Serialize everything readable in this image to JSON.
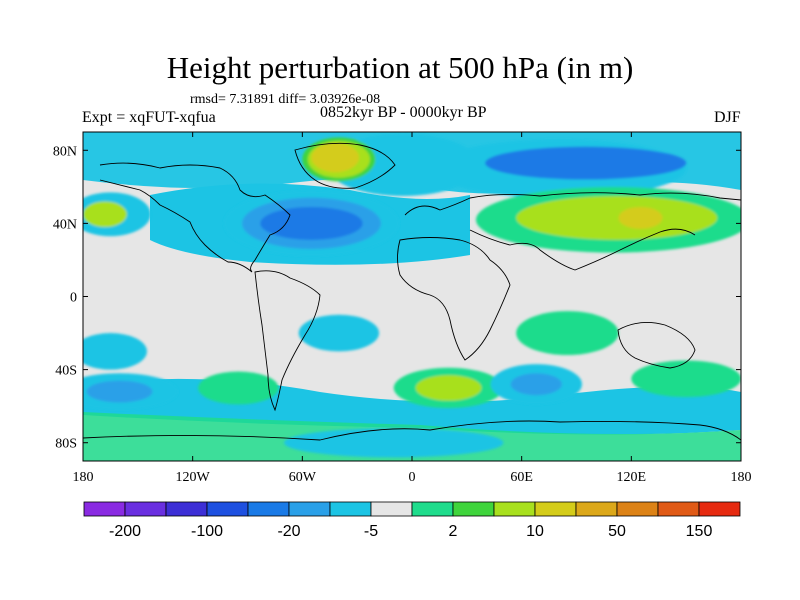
{
  "title": "Height perturbation at 500 hPa (in m)",
  "stats": "rmsd= 7.31891 diff= 3.03926e-08",
  "experiment": "Expt = xqFUT-xqfua",
  "period": "0852kyr BP - 0000kyr BP",
  "season": "DJF",
  "lat_labels": [
    "80N",
    "40N",
    "0",
    "40S",
    "80S"
  ],
  "lat_values": [
    80,
    40,
    0,
    -40,
    -80
  ],
  "lon_labels": [
    "180",
    "120W",
    "60W",
    "0",
    "60E",
    "120E",
    "180"
  ],
  "lon_values": [
    -180,
    -120,
    -60,
    0,
    60,
    120,
    180
  ],
  "colorbar": {
    "colors": [
      "#8a2be2",
      "#6a2fe0",
      "#3d2fd6",
      "#1e50e0",
      "#1a7ae6",
      "#2aa0e8",
      "#1cc4e4",
      "#e6e6e6",
      "#1fdc8c",
      "#3fd43c",
      "#a8e01e",
      "#d4cc1a",
      "#dca81a",
      "#dc8216",
      "#e05a16",
      "#e62a10"
    ],
    "labels": [
      "-200",
      "-100",
      "-20",
      "-5",
      "2",
      "10",
      "50",
      "150"
    ]
  },
  "fields": [
    {
      "lon": -5,
      "lat": 72,
      "rx": 42,
      "ry": 17,
      "color": "#1cc4e4"
    },
    {
      "lon": 80,
      "lat": 70,
      "rx": 70,
      "ry": 16,
      "color": "#1cc4e4"
    },
    {
      "lon": 95,
      "lat": 73,
      "rx": 55,
      "ry": 9,
      "color": "#1a7ae6"
    },
    {
      "lon": -40,
      "lat": 75,
      "rx": 20,
      "ry": 12,
      "color": "#3fd43c"
    },
    {
      "lon": -40,
      "lat": 75,
      "rx": 17,
      "ry": 10,
      "color": "#a8e01e"
    },
    {
      "lon": -42,
      "lat": 76,
      "rx": 13,
      "ry": 8,
      "color": "#d4cc1a"
    },
    {
      "lon": -165,
      "lat": 45,
      "rx": 22,
      "ry": 12,
      "color": "#1cc4e4"
    },
    {
      "lon": -168,
      "lat": 45,
      "rx": 12,
      "ry": 7,
      "color": "#a8e01e"
    },
    {
      "lon": -55,
      "lat": 40,
      "rx": 48,
      "ry": 18,
      "color": "#1cc4e4"
    },
    {
      "lon": -55,
      "lat": 40,
      "rx": 38,
      "ry": 14,
      "color": "#2aa0e8"
    },
    {
      "lon": -55,
      "lat": 40,
      "rx": 28,
      "ry": 9,
      "color": "#1a7ae6"
    },
    {
      "lon": 110,
      "lat": 42,
      "rx": 75,
      "ry": 18,
      "color": "#1fdc8c"
    },
    {
      "lon": 112,
      "lat": 43,
      "rx": 55,
      "ry": 12,
      "color": "#a8e01e"
    },
    {
      "lon": 125,
      "lat": 43,
      "rx": 12,
      "ry": 6,
      "color": "#d4cc1a"
    },
    {
      "lon": -40,
      "lat": -20,
      "rx": 22,
      "ry": 10,
      "color": "#1cc4e4"
    },
    {
      "lon": 85,
      "lat": -20,
      "rx": 28,
      "ry": 12,
      "color": "#1fdc8c"
    },
    {
      "lon": -165,
      "lat": -30,
      "rx": 20,
      "ry": 10,
      "color": "#1cc4e4"
    },
    {
      "lon": -160,
      "lat": -52,
      "rx": 32,
      "ry": 10,
      "color": "#1cc4e4"
    },
    {
      "lon": -160,
      "lat": -52,
      "rx": 18,
      "ry": 6,
      "color": "#2aa0e8"
    },
    {
      "lon": -95,
      "lat": -50,
      "rx": 22,
      "ry": 9,
      "color": "#1fdc8c"
    },
    {
      "lon": 20,
      "lat": -50,
      "rx": 30,
      "ry": 11,
      "color": "#1fdc8c"
    },
    {
      "lon": 20,
      "lat": -50,
      "rx": 18,
      "ry": 7,
      "color": "#a8e01e"
    },
    {
      "lon": 68,
      "lat": -48,
      "rx": 25,
      "ry": 11,
      "color": "#1cc4e4"
    },
    {
      "lon": 68,
      "lat": -48,
      "rx": 14,
      "ry": 6,
      "color": "#2aa0e8"
    },
    {
      "lon": 150,
      "lat": -45,
      "rx": 30,
      "ry": 10,
      "color": "#1fdc8c"
    },
    {
      "lon": -10,
      "lat": -80,
      "rx": 60,
      "ry": 8,
      "color": "#1cc4e4"
    }
  ]
}
